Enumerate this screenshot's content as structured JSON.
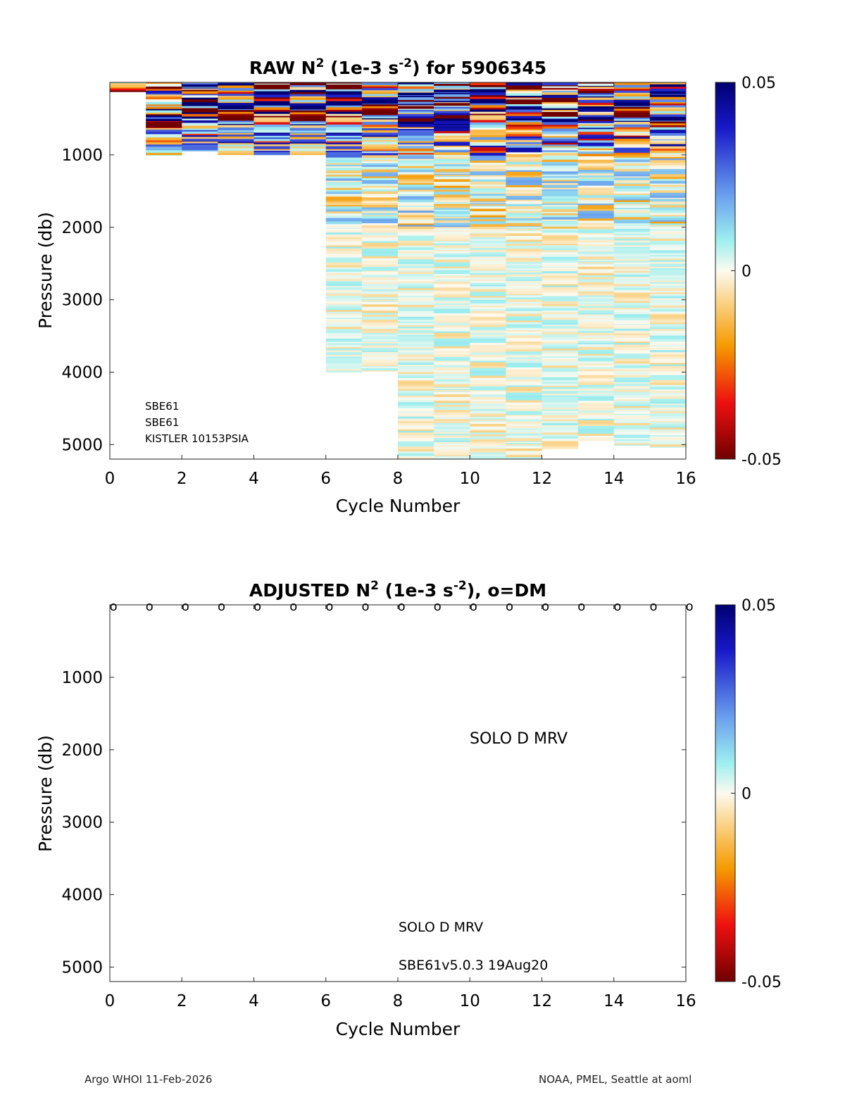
{
  "chart_data": [
    {
      "type": "heatmap",
      "title_parts": [
        "RAW N",
        "2",
        " (1e-3 s",
        "-2",
        ") for 5906345"
      ],
      "xlabel": "Cycle Number",
      "ylabel": "Pressure (db)",
      "xlim": [
        0,
        16
      ],
      "ylim": [
        0,
        5200
      ],
      "xticks": [
        0,
        2,
        4,
        6,
        8,
        10,
        12,
        14,
        16
      ],
      "yticks": [
        1000,
        2000,
        3000,
        4000,
        5000
      ],
      "colorbar": {
        "min": -0.05,
        "max": 0.05,
        "ticks": [
          0.05,
          0,
          -0.05
        ],
        "tick_labels": [
          "0.05",
          "0",
          "-0.05"
        ]
      },
      "cycles": [
        {
          "cycle": 1,
          "max_pressure": 130
        },
        {
          "cycle": 2,
          "max_pressure": 1010
        },
        {
          "cycle": 3,
          "max_pressure": 950
        },
        {
          "cycle": 4,
          "max_pressure": 1000
        },
        {
          "cycle": 5,
          "max_pressure": 1000
        },
        {
          "cycle": 6,
          "max_pressure": 1000
        },
        {
          "cycle": 7,
          "max_pressure": 4010
        },
        {
          "cycle": 8,
          "max_pressure": 3990
        },
        {
          "cycle": 9,
          "max_pressure": 5200
        },
        {
          "cycle": 10,
          "max_pressure": 5200
        },
        {
          "cycle": 11,
          "max_pressure": 5200
        },
        {
          "cycle": 12,
          "max_pressure": 5200
        },
        {
          "cycle": 13,
          "max_pressure": 5060
        },
        {
          "cycle": 14,
          "max_pressure": 4950
        },
        {
          "cycle": 15,
          "max_pressure": 5010
        },
        {
          "cycle": 16,
          "max_pressure": 5040
        }
      ],
      "annotations": [
        "SBE61",
        "SBE61",
        "KISTLER 10153PSIA"
      ]
    },
    {
      "type": "heatmap",
      "title_parts": [
        "ADJUSTED N",
        "2",
        " (1e-3 s",
        "-2",
        "), o=DM"
      ],
      "xlabel": "Cycle Number",
      "ylabel": "Pressure (db)",
      "xlim": [
        0,
        16
      ],
      "ylim": [
        0,
        5200
      ],
      "xticks": [
        0,
        2,
        4,
        6,
        8,
        10,
        12,
        14,
        16
      ],
      "yticks": [
        1000,
        2000,
        3000,
        4000,
        5000
      ],
      "colorbar": {
        "min": -0.05,
        "max": 0.05,
        "ticks": [
          0.05,
          0,
          -0.05
        ],
        "tick_labels": [
          "0.05",
          "0",
          "-0.05"
        ]
      },
      "dm_marker": "o",
      "dm_cycles": [
        0.1,
        1.1,
        2.1,
        3.1,
        4.1,
        5.1,
        6.1,
        7.1,
        8.1,
        9.1,
        10.1,
        11.1,
        12.1,
        13.1,
        14.1,
        15.1,
        16.1
      ],
      "annotations": [
        "SOLO D MRV",
        "SOLO D MRV",
        "SBE61v5.0.3 19Aug20"
      ]
    }
  ],
  "footer": {
    "left": "Argo WHOI 11-Feb-2026",
    "right": "NOAA, PMEL, Seattle at aoml"
  }
}
